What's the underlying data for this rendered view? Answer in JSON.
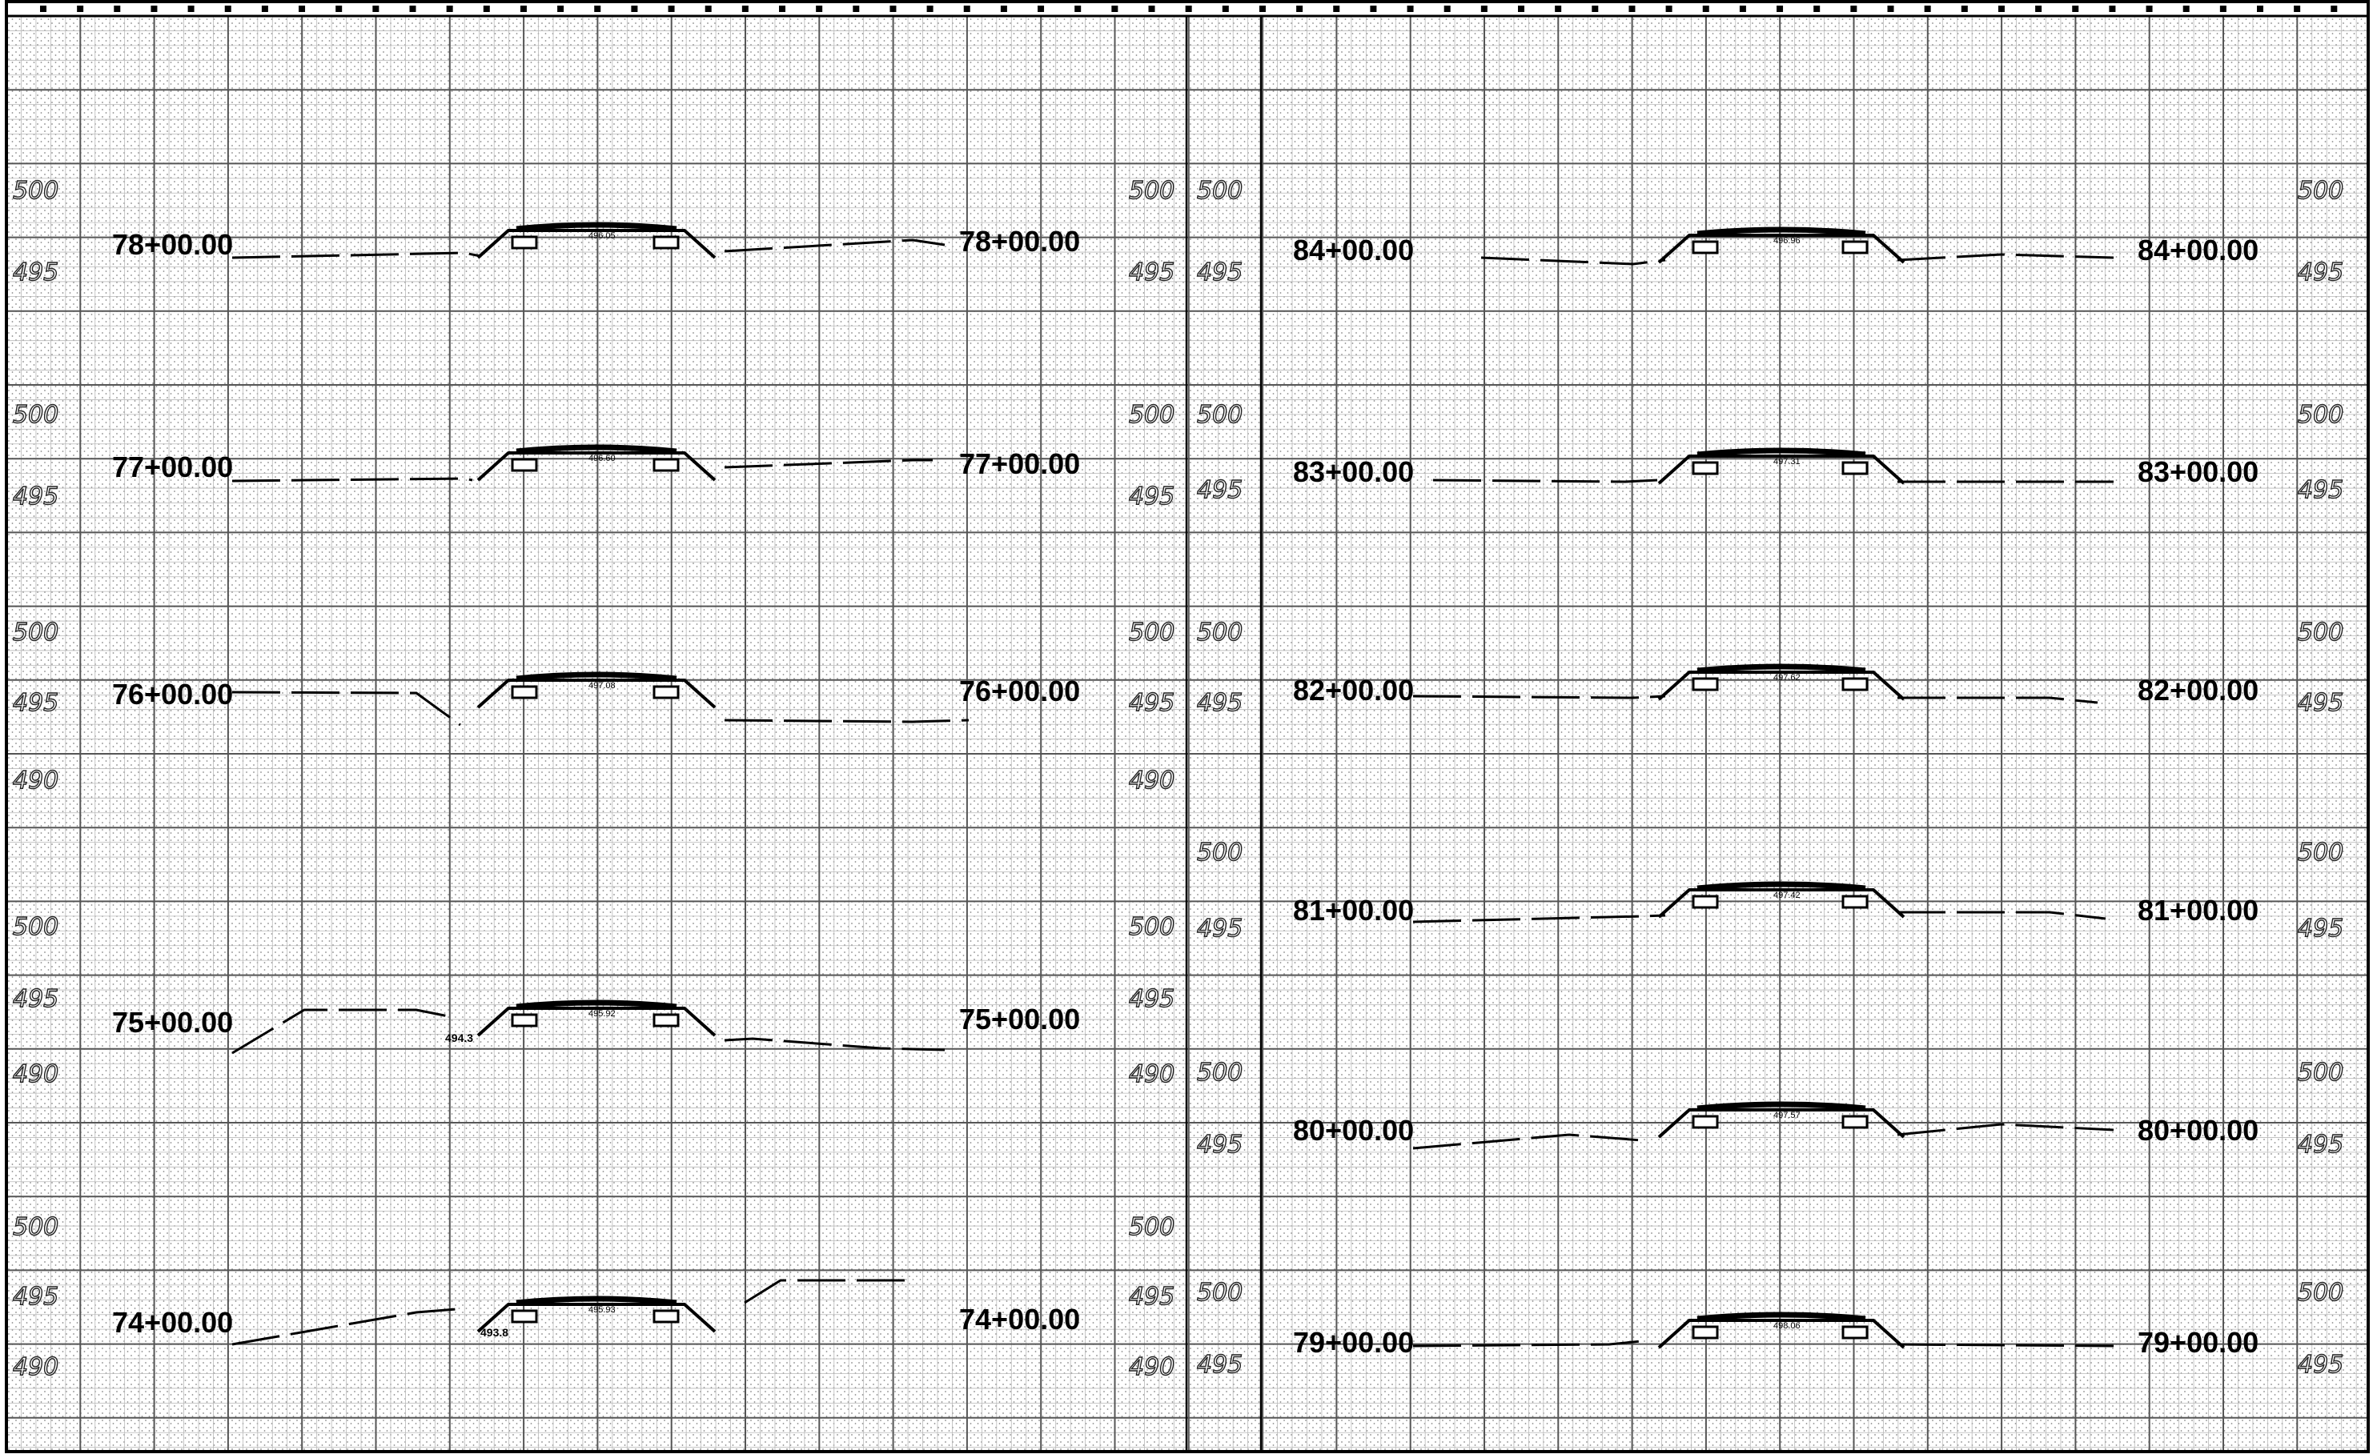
{
  "sheet": {
    "left_panel": {
      "sections": [
        {
          "station": "78+00.00",
          "elev_upper": "500",
          "elev_lower": "495",
          "elev_right_upper": "500",
          "elev_right_lower": "495",
          "grade_label": "496.05"
        },
        {
          "station": "77+00.00",
          "elev_upper": "500",
          "elev_lower": "495",
          "elev_right_upper": "500",
          "elev_right_lower": "495",
          "grade_label": "496.60"
        },
        {
          "station": "76+00.00",
          "elev_upper": "500",
          "elev_lower": "495",
          "elev_extra": "490",
          "elev_right_upper": "500",
          "elev_right_lower": "495",
          "elev_right_extra": "490",
          "grade_label": "497.08"
        },
        {
          "station": "75+00.00",
          "elev_upper": "500",
          "elev_lower": "495",
          "elev_extra": "490",
          "elev_right_upper": "500",
          "elev_right_lower": "495",
          "elev_right_extra": "490",
          "grade_label": "495.92",
          "note": "494.3"
        },
        {
          "station": "74+00.00",
          "elev_upper": "500",
          "elev_lower": "495",
          "elev_extra": "490",
          "elev_right_upper": "500",
          "elev_right_lower": "495",
          "elev_right_extra": "490",
          "grade_label": "495.93",
          "note": "493.8"
        }
      ]
    },
    "right_panel": {
      "sections": [
        {
          "station": "84+00.00",
          "elev_upper": "500",
          "elev_lower": "495",
          "grade_label": "496.96"
        },
        {
          "station": "83+00.00",
          "elev_upper": "500",
          "elev_lower": "495",
          "grade_label": "497.31"
        },
        {
          "station": "82+00.00",
          "elev_upper": "500",
          "elev_lower": "495",
          "grade_label": "497.62"
        },
        {
          "station": "81+00.00",
          "elev_upper": "500",
          "elev_lower": "495",
          "grade_label": "497.42"
        },
        {
          "station": "80+00.00",
          "elev_upper": "500",
          "elev_lower": "495",
          "grade_label": "497.57"
        },
        {
          "station": "79+00.00",
          "elev_upper": "500",
          "elev_lower": "495",
          "grade_label": "498.06"
        }
      ]
    },
    "top_ruler_left": [
      "",
      "",
      "",
      "",
      "",
      "",
      "",
      "",
      "",
      "",
      "",
      "",
      "",
      "",
      "",
      "",
      "",
      "",
      "",
      "",
      "",
      "",
      "",
      "",
      "",
      "",
      "",
      "",
      ""
    ],
    "colors": {
      "grid_fine": "#b9b9b9",
      "grid_major": "#555555",
      "ink": "#000000",
      "paper": "#ffffff"
    }
  }
}
